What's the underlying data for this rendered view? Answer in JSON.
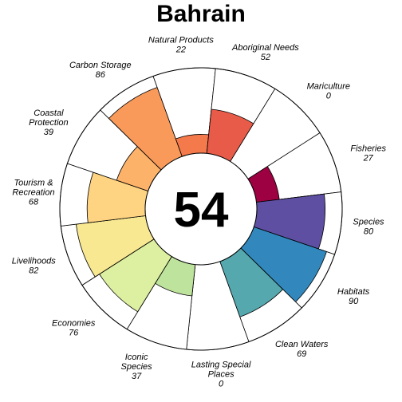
{
  "chart_data": {
    "type": "flower",
    "title": "Bahrain",
    "center_score": "54",
    "ylim": [
      0,
      100
    ],
    "petals": [
      {
        "label": [
          "Fisheries"
        ],
        "value": 27,
        "color": "#9E0142"
      },
      {
        "label": [
          "Species"
        ],
        "value": 80,
        "color": "#5E4FA2"
      },
      {
        "label": [
          "Habitats"
        ],
        "value": 90,
        "color": "#3288BD"
      },
      {
        "label": [
          "Clean Waters"
        ],
        "value": 69,
        "color": "#55A8AE"
      },
      {
        "label": [
          "Lasting Special",
          "Places"
        ],
        "value": 0,
        "color": "#99D594"
      },
      {
        "label": [
          "Iconic",
          "Species"
        ],
        "value": 37,
        "color": "#BDE39C"
      },
      {
        "label": [
          "Economies"
        ],
        "value": 76,
        "color": "#DDEFA0"
      },
      {
        "label": [
          "Livelihoods"
        ],
        "value": 82,
        "color": "#F8E891"
      },
      {
        "label": [
          "Tourism &",
          "Recreation"
        ],
        "value": 68,
        "color": "#FED382"
      },
      {
        "label": [
          "Coastal",
          "Protection"
        ],
        "value": 39,
        "color": "#FDB26A"
      },
      {
        "label": [
          "Carbon Storage"
        ],
        "value": 86,
        "color": "#F99A5A"
      },
      {
        "label": [
          "Natural Products"
        ],
        "value": 22,
        "color": "#F57A4B"
      },
      {
        "label": [
          "Aboriginal Needs"
        ],
        "value": 52,
        "color": "#E85B48"
      },
      {
        "label": [
          "Mariculture"
        ],
        "value": 0,
        "color": "#D53E4F"
      }
    ]
  }
}
